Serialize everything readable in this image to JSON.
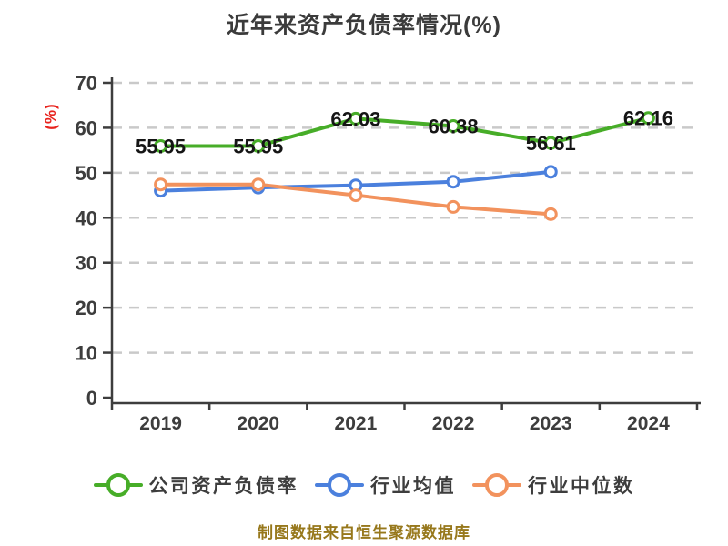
{
  "footer": "制图数据来自恒生聚源数据库",
  "colors": {
    "title_text": "#3b3b3b",
    "axis": "#3d3d3d",
    "tick_text": "#3d3d3d",
    "grid": "#c9c9c9",
    "data_label_text": "#151515",
    "y_axis_label": "#e8231d",
    "footer_text": "#97781c",
    "marker_fill": "#ffffff",
    "series_company": "#47ad28",
    "series_mean": "#4b80dd",
    "series_median": "#f2925d"
  },
  "chart_data": {
    "type": "line",
    "title": "近年来资产负债率情况(%)",
    "x": [
      "2019",
      "2020",
      "2021",
      "2022",
      "2023",
      "2024"
    ],
    "xlabel": "",
    "ylabel": "(%)",
    "ylim": [
      0,
      70
    ],
    "yticks": [
      0,
      10,
      20,
      30,
      40,
      50,
      60,
      70
    ],
    "grid": "horizontal-dashed",
    "legend_position": "bottom",
    "series": [
      {
        "name": "公司资产负债率",
        "color": "#47ad28",
        "values": [
          55.95,
          55.95,
          62.03,
          60.38,
          56.61,
          62.16
        ],
        "point_labels": [
          "55.95",
          "55.95",
          "62.03",
          "60.38",
          "56.61",
          "62.16"
        ]
      },
      {
        "name": "行业均值",
        "color": "#4b80dd",
        "values": [
          46.0,
          46.7,
          47.2,
          48.0,
          50.2,
          null
        ],
        "point_labels": null
      },
      {
        "name": "行业中位数",
        "color": "#f2925d",
        "values": [
          47.4,
          47.4,
          45.0,
          42.4,
          40.8,
          null
        ],
        "point_labels": null
      }
    ]
  }
}
